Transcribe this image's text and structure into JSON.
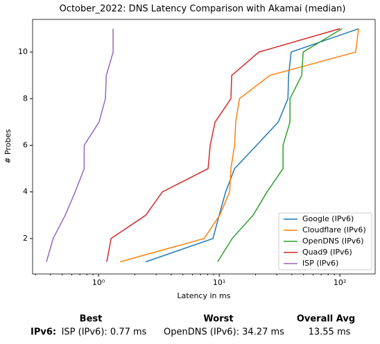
{
  "chart_data": {
    "type": "line",
    "title": "October_2022: DNS Latency Comparison with Akamai (median)",
    "xlabel": "Latency in ms",
    "ylabel": "# Probes",
    "xscale": "log",
    "xlim": [
      0.284,
      196
    ],
    "ylim": [
      0.48,
      11.4
    ],
    "xticks": [
      {
        "value": 1,
        "label": "10⁰"
      },
      {
        "value": 10,
        "label": "10¹"
      },
      {
        "value": 100,
        "label": "10²"
      }
    ],
    "xminorticks": [
      0.3,
      0.4,
      0.5,
      0.6,
      0.7,
      0.8,
      0.9,
      2,
      3,
      4,
      5,
      6,
      7,
      8,
      9,
      20,
      30,
      40,
      50,
      60,
      70,
      80,
      90
    ],
    "yticks": [
      2,
      4,
      6,
      8,
      10
    ],
    "legend": "lower right",
    "series": [
      {
        "name": "Google (IPv6)",
        "color": "#1f77b4",
        "x": [
          2.46,
          8.87,
          10,
          11.3,
          13.4,
          20.4,
          30.9,
          37.1,
          37.6,
          39.5,
          143
        ],
        "values": [
          1,
          2,
          3,
          4,
          5,
          6,
          7,
          8,
          9,
          10,
          11
        ]
      },
      {
        "name": "Cloudflare (IPv6)",
        "color": "#ff7f0e",
        "x": [
          1.51,
          7.5,
          10.1,
          12.2,
          12.5,
          13.4,
          13.7,
          14.7,
          26.3,
          135,
          143
        ],
        "values": [
          1,
          2,
          3,
          4,
          5,
          6,
          7,
          8,
          9,
          10,
          11
        ]
      },
      {
        "name": "OpenDNS (IPv6)",
        "color": "#2ca02c",
        "x": [
          9.7,
          12.8,
          19.1,
          24.9,
          33.8,
          33.8,
          38.6,
          38.6,
          48.3,
          49.6,
          104
        ],
        "values": [
          1,
          2,
          3,
          4,
          5,
          6,
          7,
          8,
          9,
          10,
          11
        ]
      },
      {
        "name": "Quad9 (IPv6)",
        "color": "#d62728",
        "x": [
          1.17,
          1.27,
          2.46,
          3.38,
          8.09,
          8.42,
          9.24,
          12.5,
          12.7,
          21.3,
          100
        ],
        "values": [
          1,
          2,
          3,
          4,
          5,
          6,
          7,
          8,
          9,
          10,
          11
        ]
      },
      {
        "name": "ISP (IPv6)",
        "color": "#9467bd",
        "x": [
          0.37,
          0.42,
          0.53,
          0.64,
          0.76,
          0.76,
          1.01,
          1.14,
          1.16,
          1.32,
          1.32
        ],
        "values": [
          1,
          2,
          3,
          4,
          5,
          6,
          7,
          8,
          9,
          10,
          11
        ]
      }
    ]
  },
  "summary": {
    "headers": [
      "Best",
      "Worst",
      "Overall Avg"
    ],
    "row_label": "IPv6:",
    "cells": [
      "ISP (IPv6): 0.77 ms",
      "OpenDNS (IPv6): 34.27 ms",
      "13.55 ms"
    ]
  }
}
